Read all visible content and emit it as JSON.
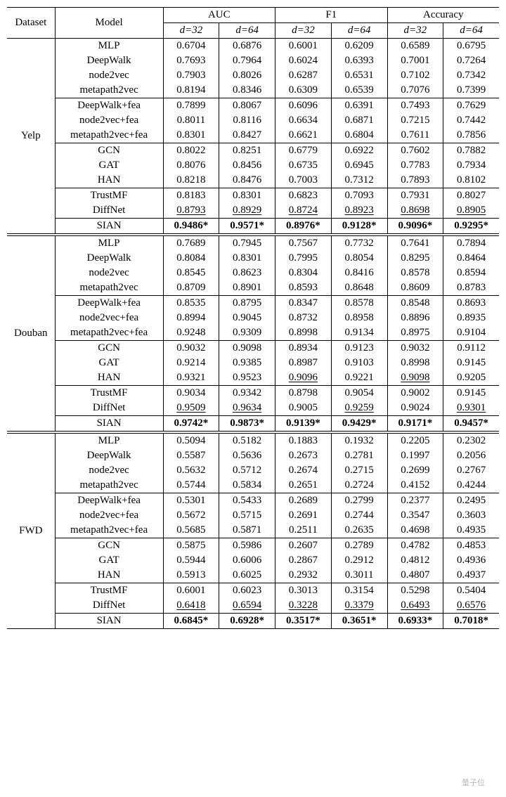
{
  "headers": {
    "dataset": "Dataset",
    "model": "Model",
    "metrics": [
      "AUC",
      "F1",
      "Accuracy"
    ],
    "d32": "d=32",
    "d64": "d=64"
  },
  "datasets": [
    {
      "name": "Yelp",
      "groups": [
        [
          {
            "m": "MLP",
            "v": [
              "0.6704",
              "0.6876",
              "0.6001",
              "0.6209",
              "0.6589",
              "0.6795"
            ]
          },
          {
            "m": "DeepWalk",
            "v": [
              "0.7693",
              "0.7964",
              "0.6024",
              "0.6393",
              "0.7001",
              "0.7264"
            ]
          },
          {
            "m": "node2vec",
            "v": [
              "0.7903",
              "0.8026",
              "0.6287",
              "0.6531",
              "0.7102",
              "0.7342"
            ]
          },
          {
            "m": "metapath2vec",
            "v": [
              "0.8194",
              "0.8346",
              "0.6309",
              "0.6539",
              "0.7076",
              "0.7399"
            ]
          }
        ],
        [
          {
            "m": "DeepWalk+fea",
            "v": [
              "0.7899",
              "0.8067",
              "0.6096",
              "0.6391",
              "0.7493",
              "0.7629"
            ]
          },
          {
            "m": "node2vec+fea",
            "v": [
              "0.8011",
              "0.8116",
              "0.6634",
              "0.6871",
              "0.7215",
              "0.7442"
            ]
          },
          {
            "m": "metapath2vec+fea",
            "v": [
              "0.8301",
              "0.8427",
              "0.6621",
              "0.6804",
              "0.7611",
              "0.7856"
            ]
          }
        ],
        [
          {
            "m": "GCN",
            "v": [
              "0.8022",
              "0.8251",
              "0.6779",
              "0.6922",
              "0.7602",
              "0.7882"
            ]
          },
          {
            "m": "GAT",
            "v": [
              "0.8076",
              "0.8456",
              "0.6735",
              "0.6945",
              "0.7783",
              "0.7934"
            ]
          },
          {
            "m": "HAN",
            "v": [
              "0.8218",
              "0.8476",
              "0.7003",
              "0.7312",
              "0.7893",
              "0.8102"
            ]
          }
        ],
        [
          {
            "m": "TrustMF",
            "v": [
              "0.8183",
              "0.8301",
              "0.6823",
              "0.7093",
              "0.7931",
              "0.8027"
            ]
          },
          {
            "m": "DiffNet",
            "v": [
              "0.8793",
              "0.8929",
              "0.8724",
              "0.8923",
              "0.8698",
              "0.8905"
            ],
            "ul": [
              0,
              1,
              2,
              3,
              4,
              5
            ]
          }
        ],
        [
          {
            "m": "SIAN",
            "v": [
              "0.9486",
              "0.9571",
              "0.8976",
              "0.9128",
              "0.9096",
              "0.9295"
            ],
            "bold": true,
            "star": true
          }
        ]
      ]
    },
    {
      "name": "Douban",
      "groups": [
        [
          {
            "m": "MLP",
            "v": [
              "0.7689",
              "0.7945",
              "0.7567",
              "0.7732",
              "0.7641",
              "0.7894"
            ]
          },
          {
            "m": "DeepWalk",
            "v": [
              "0.8084",
              "0.8301",
              "0.7995",
              "0.8054",
              "0.8295",
              "0.8464"
            ]
          },
          {
            "m": "node2vec",
            "v": [
              "0.8545",
              "0.8623",
              "0.8304",
              "0.8416",
              "0.8578",
              "0.8594"
            ]
          },
          {
            "m": "metapath2vec",
            "v": [
              "0.8709",
              "0.8901",
              "0.8593",
              "0.8648",
              "0.8609",
              "0.8783"
            ]
          }
        ],
        [
          {
            "m": "DeepWalk+fea",
            "v": [
              "0.8535",
              "0.8795",
              "0.8347",
              "0.8578",
              "0.8548",
              "0.8693"
            ]
          },
          {
            "m": "node2vec+fea",
            "v": [
              "0.8994",
              "0.9045",
              "0.8732",
              "0.8958",
              "0.8896",
              "0.8935"
            ]
          },
          {
            "m": "metapath2vec+fea",
            "v": [
              "0.9248",
              "0.9309",
              "0.8998",
              "0.9134",
              "0.8975",
              "0.9104"
            ]
          }
        ],
        [
          {
            "m": "GCN",
            "v": [
              "0.9032",
              "0.9098",
              "0.8934",
              "0.9123",
              "0.9032",
              "0.9112"
            ]
          },
          {
            "m": "GAT",
            "v": [
              "0.9214",
              "0.9385",
              "0.8987",
              "0.9103",
              "0.8998",
              "0.9145"
            ]
          },
          {
            "m": "HAN",
            "v": [
              "0.9321",
              "0.9523",
              "0.9096",
              "0.9221",
              "0.9098",
              "0.9205"
            ],
            "ul": [
              2,
              4
            ]
          }
        ],
        [
          {
            "m": "TrustMF",
            "v": [
              "0.9034",
              "0.9342",
              "0.8798",
              "0.9054",
              "0.9002",
              "0.9145"
            ]
          },
          {
            "m": "DiffNet",
            "v": [
              "0.9509",
              "0.9634",
              "0.9005",
              "0.9259",
              "0.9024",
              "0.9301"
            ],
            "ul": [
              0,
              1,
              3,
              5
            ]
          }
        ],
        [
          {
            "m": "SIAN",
            "v": [
              "0.9742",
              "0.9873",
              "0.9139",
              "0.9429",
              "0.9171",
              "0.9457"
            ],
            "bold": true,
            "star": true
          }
        ]
      ]
    },
    {
      "name": "FWD",
      "groups": [
        [
          {
            "m": "MLP",
            "v": [
              "0.5094",
              "0.5182",
              "0.1883",
              "0.1932",
              "0.2205",
              "0.2302"
            ]
          },
          {
            "m": "DeepWalk",
            "v": [
              "0.5587",
              "0.5636",
              "0.2673",
              "0.2781",
              "0.1997",
              "0.2056"
            ]
          },
          {
            "m": "node2vec",
            "v": [
              "0.5632",
              "0.5712",
              "0.2674",
              "0.2715",
              "0.2699",
              "0.2767"
            ]
          },
          {
            "m": "metapath2vec",
            "v": [
              "0.5744",
              "0.5834",
              "0.2651",
              "0.2724",
              "0.4152",
              "0.4244"
            ]
          }
        ],
        [
          {
            "m": "DeepWalk+fea",
            "v": [
              "0.5301",
              "0.5433",
              "0.2689",
              "0.2799",
              "0.2377",
              "0.2495"
            ]
          },
          {
            "m": "node2vec+fea",
            "v": [
              "0.5672",
              "0.5715",
              "0.2691",
              "0.2744",
              "0.3547",
              "0.3603"
            ]
          },
          {
            "m": "metapath2vec+fea",
            "v": [
              "0.5685",
              "0.5871",
              "0.2511",
              "0.2635",
              "0.4698",
              "0.4935"
            ]
          }
        ],
        [
          {
            "m": "GCN",
            "v": [
              "0.5875",
              "0.5986",
              "0.2607",
              "0.2789",
              "0.4782",
              "0.4853"
            ]
          },
          {
            "m": "GAT",
            "v": [
              "0.5944",
              "0.6006",
              "0.2867",
              "0.2912",
              "0.4812",
              "0.4936"
            ]
          },
          {
            "m": "HAN",
            "v": [
              "0.5913",
              "0.6025",
              "0.2932",
              "0.3011",
              "0.4807",
              "0.4937"
            ]
          }
        ],
        [
          {
            "m": "TrustMF",
            "v": [
              "0.6001",
              "0.6023",
              "0.3013",
              "0.3154",
              "0.5298",
              "0.5404"
            ]
          },
          {
            "m": "DiffNet",
            "v": [
              "0.6418",
              "0.6594",
              "0.3228",
              "0.3379",
              "0.6493",
              "0.6576"
            ],
            "ul": [
              0,
              1,
              2,
              3,
              4,
              5
            ]
          }
        ],
        [
          {
            "m": "SIAN",
            "v": [
              "0.6845",
              "0.6928",
              "0.3517",
              "0.3651",
              "0.6933",
              "0.7018"
            ],
            "bold": true,
            "star": true
          }
        ]
      ]
    }
  ],
  "watermark": "量子位"
}
